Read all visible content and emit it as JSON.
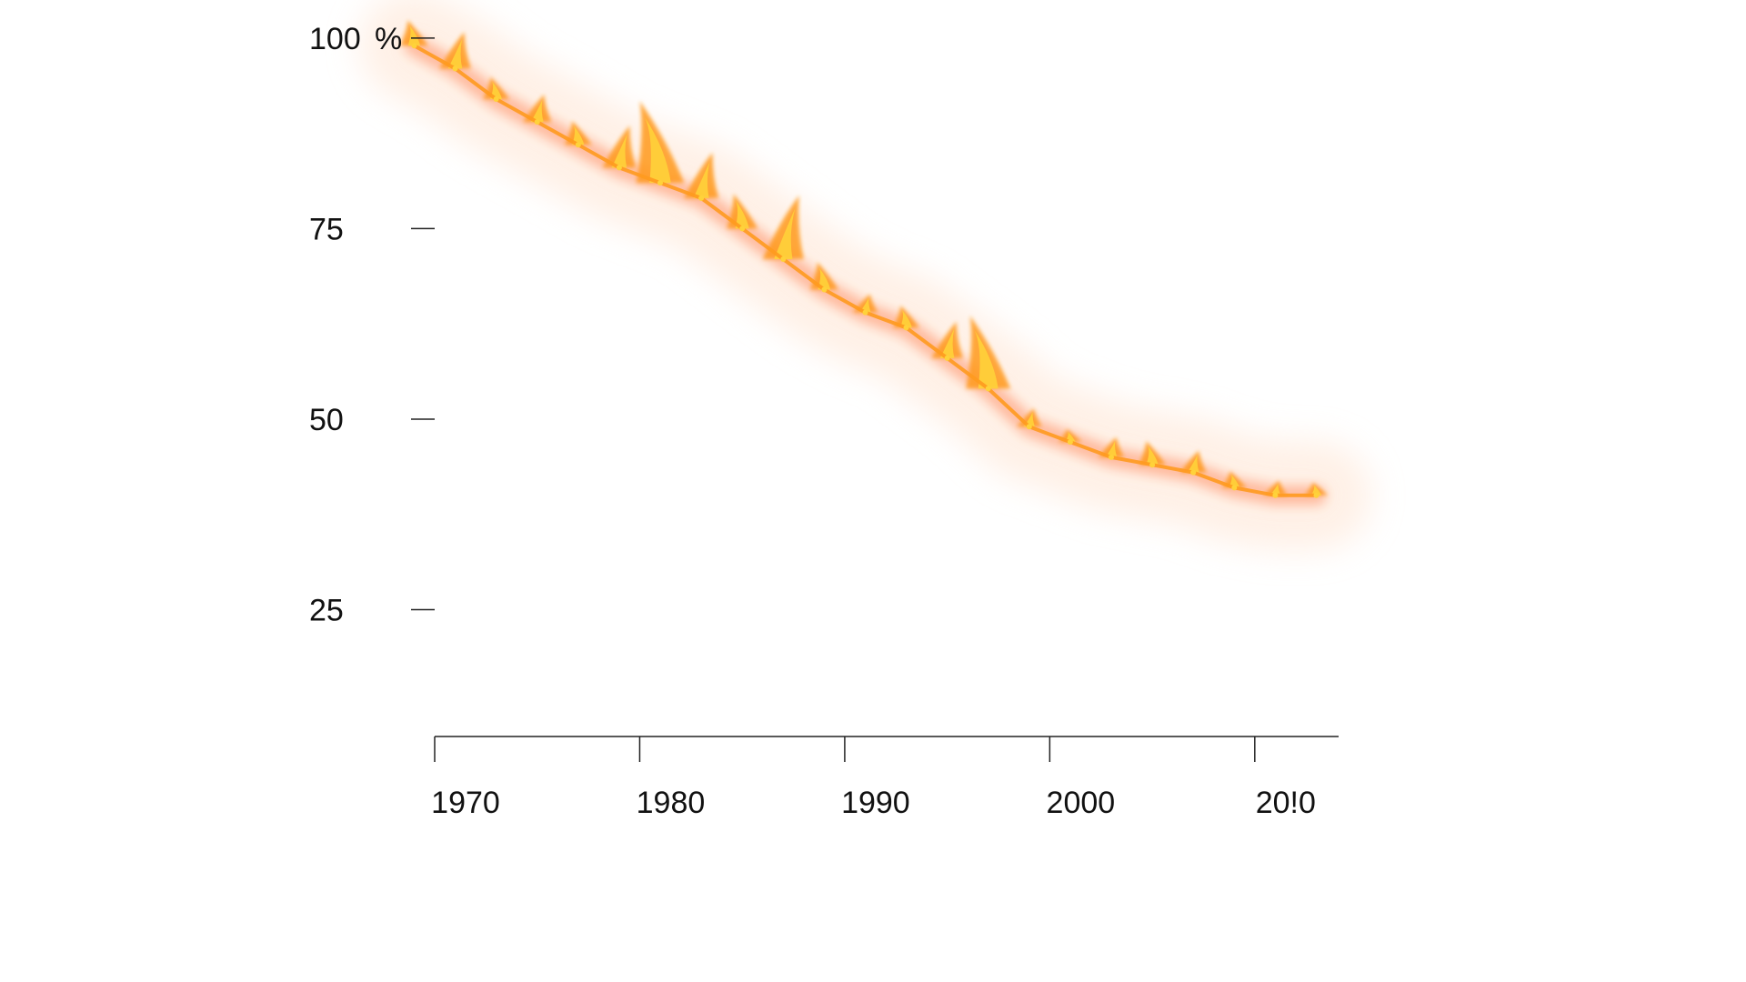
{
  "chart_data": {
    "type": "line",
    "title": "",
    "xlabel": "",
    "ylabel": "",
    "y_unit_label": "%",
    "xlim": [
      1970,
      2014
    ],
    "ylim": [
      0,
      105
    ],
    "x_ticks": [
      1970,
      1980,
      1990,
      2000,
      2010
    ],
    "x_tick_labels": [
      "1970",
      "1980",
      "1990",
      "2000",
      "20!0"
    ],
    "y_ticks": [
      25,
      50,
      75,
      100
    ],
    "y_tick_labels": [
      "25",
      "50",
      "75",
      "100"
    ],
    "grid": false,
    "legend": "none",
    "series": [
      {
        "style": "flame",
        "x": [
          1969,
          1971,
          1973,
          1975,
          1977,
          1979,
          1981,
          1983,
          1985,
          1987,
          1989,
          1991,
          1993,
          1995,
          1997,
          1999,
          2001,
          2003,
          2005,
          2007,
          2009,
          2011,
          2013
        ],
        "values": [
          99,
          96,
          92,
          89,
          86,
          83,
          81,
          79,
          75,
          71,
          67,
          64,
          62,
          58,
          54,
          49,
          47,
          45,
          44,
          43,
          41,
          40,
          40
        ]
      }
    ],
    "colors": {
      "flame_core": "#ffd23a",
      "flame_mid": "#ff9a1f",
      "flame_edge": "#ff5a1a",
      "haze": "#ffe4d2",
      "axis": "#222222"
    }
  }
}
